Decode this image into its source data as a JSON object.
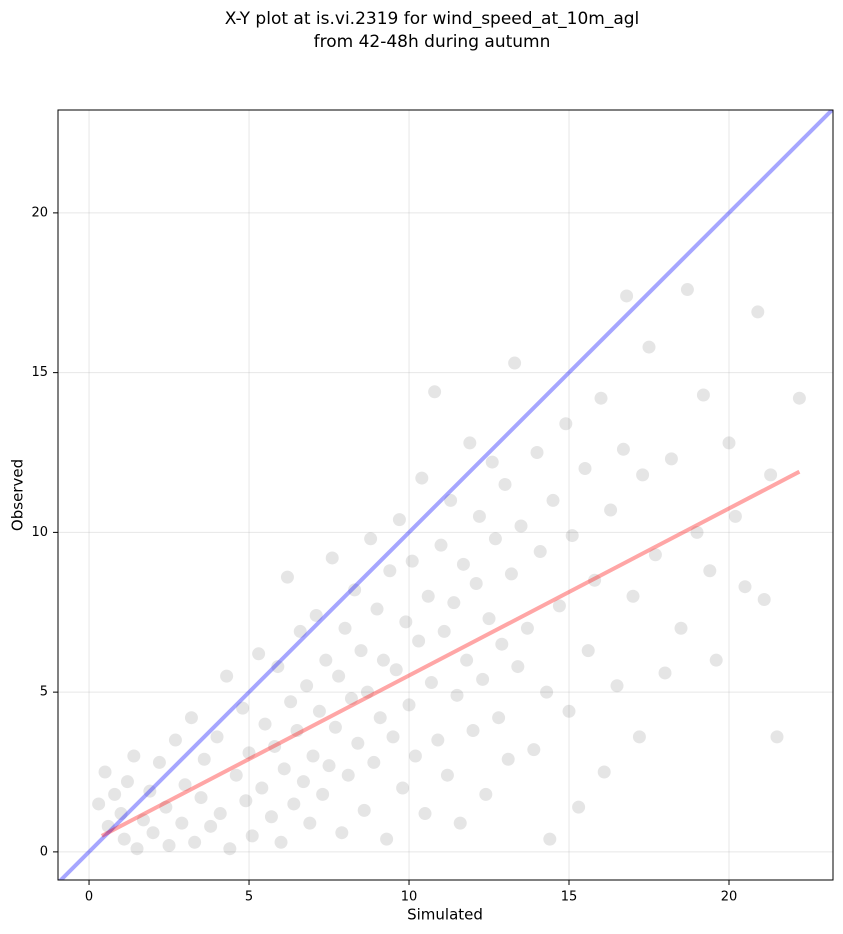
{
  "chart_data": {
    "type": "scatter",
    "title": [
      "X-Y plot at is.vi.2319 for wind_speed_at_10m_agl",
      "from 42-48h during autumn"
    ],
    "x_label": "Simulated",
    "y_label": "Observed",
    "xlim": [
      -0.97,
      23.25
    ],
    "ylim": [
      -0.88,
      23.22
    ],
    "xticks": [
      0,
      5,
      10,
      15,
      20
    ],
    "yticks": [
      0,
      5,
      10,
      15,
      20
    ],
    "grid": true,
    "series": [
      {
        "type": "scatter",
        "color": "#000000",
        "opacity": 0.1,
        "x": [
          0.3,
          0.5,
          0.6,
          0.8,
          1.0,
          1.1,
          1.2,
          1.4,
          1.5,
          1.7,
          1.9,
          2.0,
          2.2,
          2.4,
          2.5,
          2.7,
          2.9,
          3.0,
          3.2,
          3.3,
          3.5,
          3.6,
          3.8,
          4.0,
          4.1,
          4.3,
          4.4,
          4.6,
          4.8,
          4.9,
          5.0,
          5.1,
          5.3,
          5.4,
          5.5,
          5.7,
          5.8,
          5.9,
          6.0,
          6.1,
          6.2,
          6.3,
          6.4,
          6.5,
          6.6,
          6.7,
          6.8,
          6.9,
          7.0,
          7.1,
          7.2,
          7.3,
          7.4,
          7.5,
          7.6,
          7.7,
          7.8,
          7.9,
          8.0,
          8.1,
          8.2,
          8.3,
          8.4,
          8.5,
          8.6,
          8.7,
          8.8,
          8.9,
          9.0,
          9.1,
          9.2,
          9.3,
          9.4,
          9.5,
          9.6,
          9.7,
          9.8,
          9.9,
          10.0,
          10.1,
          10.2,
          10.3,
          10.4,
          10.5,
          10.6,
          10.7,
          10.8,
          10.9,
          11.0,
          11.1,
          11.2,
          11.3,
          11.4,
          11.5,
          11.6,
          11.7,
          11.8,
          11.9,
          12.0,
          12.1,
          12.2,
          12.3,
          12.4,
          12.5,
          12.6,
          12.7,
          12.8,
          12.9,
          13.0,
          13.1,
          13.2,
          13.3,
          13.4,
          13.5,
          13.7,
          13.9,
          14.0,
          14.1,
          14.3,
          14.4,
          14.5,
          14.7,
          14.9,
          15.0,
          15.1,
          15.3,
          15.5,
          15.6,
          15.8,
          16.0,
          16.1,
          16.3,
          16.5,
          16.7,
          16.8,
          17.0,
          17.2,
          17.3,
          17.5,
          17.7,
          18.0,
          18.2,
          18.5,
          18.7,
          19.0,
          19.2,
          19.4,
          19.6,
          20.0,
          20.2,
          20.5,
          20.9,
          21.1,
          21.3,
          21.5,
          22.2
        ],
        "values": [
          1.5,
          2.5,
          0.8,
          1.8,
          1.2,
          0.4,
          2.2,
          3.0,
          0.1,
          1.0,
          1.9,
          0.6,
          2.8,
          1.4,
          0.2,
          3.5,
          0.9,
          2.1,
          4.2,
          0.3,
          1.7,
          2.9,
          0.8,
          3.6,
          1.2,
          5.5,
          0.1,
          2.4,
          4.5,
          1.6,
          3.1,
          0.5,
          6.2,
          2.0,
          4.0,
          1.1,
          3.3,
          5.8,
          0.3,
          2.6,
          8.6,
          4.7,
          1.5,
          3.8,
          6.9,
          2.2,
          5.2,
          0.9,
          3.0,
          7.4,
          4.4,
          1.8,
          6.0,
          2.7,
          9.2,
          3.9,
          5.5,
          0.6,
          7.0,
          2.4,
          4.8,
          8.2,
          3.4,
          6.3,
          1.3,
          5.0,
          9.8,
          2.8,
          7.6,
          4.2,
          6.0,
          0.4,
          8.8,
          3.6,
          5.7,
          10.4,
          2.0,
          7.2,
          4.6,
          9.1,
          3.0,
          6.6,
          11.7,
          1.2,
          8.0,
          5.3,
          14.4,
          3.5,
          9.6,
          6.9,
          2.4,
          11.0,
          7.8,
          4.9,
          0.9,
          9.0,
          6.0,
          12.8,
          3.8,
          8.4,
          10.5,
          5.4,
          1.8,
          7.3,
          12.2,
          9.8,
          4.2,
          6.5,
          11.5,
          2.9,
          8.7,
          15.3,
          5.8,
          10.2,
          7.0,
          3.2,
          12.5,
          9.4,
          5.0,
          0.4,
          11.0,
          7.7,
          13.4,
          4.4,
          9.9,
          1.4,
          12.0,
          6.3,
          8.5,
          14.2,
          2.5,
          10.7,
          5.2,
          12.6,
          17.4,
          8.0,
          3.6,
          11.8,
          15.8,
          9.3,
          5.6,
          12.3,
          7.0,
          17.6,
          10.0,
          14.3,
          8.8,
          6.0,
          12.8,
          10.5,
          8.3,
          16.9,
          7.9,
          11.8,
          3.6,
          14.2
        ]
      },
      {
        "type": "line",
        "color": "#0000ff",
        "opacity": 0.35,
        "x": [
          -0.97,
          23.25
        ],
        "values": [
          -0.97,
          23.25
        ]
      },
      {
        "type": "line",
        "color": "#ff0000",
        "opacity": 0.35,
        "x": [
          0.4,
          22.2
        ],
        "values": [
          0.5,
          11.9
        ]
      }
    ]
  }
}
